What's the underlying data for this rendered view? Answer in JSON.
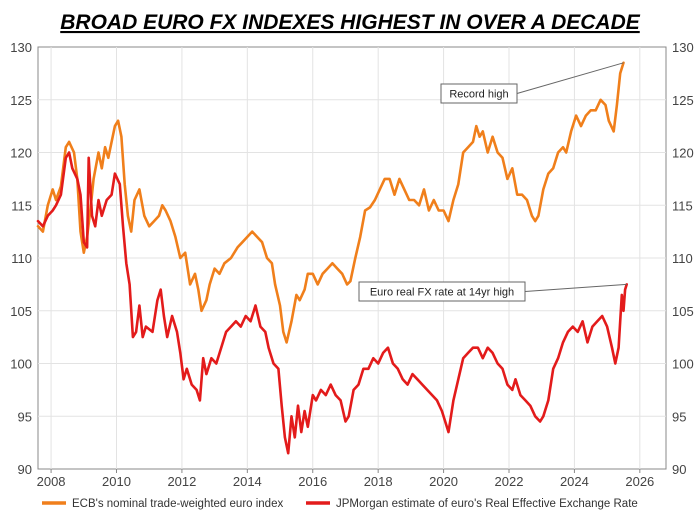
{
  "chart_data": {
    "type": "line",
    "title": "BROAD EURO FX INDEXES HIGHEST IN OVER A DECADE",
    "xlabel": "",
    "ylabel": "",
    "xlim": [
      2007.6,
      2026.8
    ],
    "ylim": [
      90,
      130
    ],
    "x_ticks": [
      2008,
      2010,
      2012,
      2014,
      2016,
      2018,
      2020,
      2022,
      2024,
      2026
    ],
    "y_ticks": [
      90,
      95,
      100,
      105,
      110,
      115,
      120,
      125,
      130
    ],
    "grid": true,
    "series": [
      {
        "name": "ECB's nominal trade-weighted euro index",
        "color": "#F07F1B",
        "points": [
          [
            2007.6,
            113.0
          ],
          [
            2007.75,
            112.5
          ],
          [
            2007.9,
            115.0
          ],
          [
            2008.05,
            116.5
          ],
          [
            2008.15,
            115.5
          ],
          [
            2008.3,
            116.8
          ],
          [
            2008.45,
            120.5
          ],
          [
            2008.55,
            121.0
          ],
          [
            2008.7,
            120.0
          ],
          [
            2008.8,
            117.5
          ],
          [
            2008.9,
            112.5
          ],
          [
            2009.0,
            110.5
          ],
          [
            2009.1,
            112.0
          ],
          [
            2009.2,
            114.5
          ],
          [
            2009.3,
            117.5
          ],
          [
            2009.45,
            120.0
          ],
          [
            2009.55,
            118.5
          ],
          [
            2009.65,
            120.5
          ],
          [
            2009.75,
            119.5
          ],
          [
            2009.85,
            121.0
          ],
          [
            2009.95,
            122.5
          ],
          [
            2010.05,
            123.0
          ],
          [
            2010.15,
            121.5
          ],
          [
            2010.25,
            117.0
          ],
          [
            2010.35,
            114.0
          ],
          [
            2010.45,
            112.5
          ],
          [
            2010.55,
            115.5
          ],
          [
            2010.7,
            116.5
          ],
          [
            2010.85,
            114.0
          ],
          [
            2011.0,
            113.0
          ],
          [
            2011.15,
            113.5
          ],
          [
            2011.3,
            114.0
          ],
          [
            2011.4,
            115.0
          ],
          [
            2011.5,
            114.5
          ],
          [
            2011.65,
            113.5
          ],
          [
            2011.8,
            112.0
          ],
          [
            2011.95,
            110.0
          ],
          [
            2012.1,
            110.5
          ],
          [
            2012.25,
            107.5
          ],
          [
            2012.4,
            108.5
          ],
          [
            2012.5,
            107.0
          ],
          [
            2012.6,
            105.0
          ],
          [
            2012.75,
            106.0
          ],
          [
            2012.85,
            107.5
          ],
          [
            2013.0,
            109.0
          ],
          [
            2013.15,
            108.5
          ],
          [
            2013.3,
            109.5
          ],
          [
            2013.5,
            110.0
          ],
          [
            2013.7,
            111.0
          ],
          [
            2013.85,
            111.5
          ],
          [
            2014.0,
            112.0
          ],
          [
            2014.15,
            112.5
          ],
          [
            2014.3,
            112.0
          ],
          [
            2014.45,
            111.5
          ],
          [
            2014.6,
            110.0
          ],
          [
            2014.75,
            109.5
          ],
          [
            2014.85,
            107.5
          ],
          [
            2015.0,
            105.5
          ],
          [
            2015.1,
            103.0
          ],
          [
            2015.2,
            102.0
          ],
          [
            2015.35,
            104.0
          ],
          [
            2015.5,
            106.5
          ],
          [
            2015.6,
            106.0
          ],
          [
            2015.75,
            107.0
          ],
          [
            2015.85,
            108.5
          ],
          [
            2016.0,
            108.5
          ],
          [
            2016.15,
            107.5
          ],
          [
            2016.3,
            108.5
          ],
          [
            2016.45,
            109.0
          ],
          [
            2016.6,
            109.5
          ],
          [
            2016.75,
            109.0
          ],
          [
            2016.9,
            108.5
          ],
          [
            2017.05,
            107.5
          ],
          [
            2017.15,
            107.8
          ],
          [
            2017.3,
            110.0
          ],
          [
            2017.45,
            112.0
          ],
          [
            2017.6,
            114.5
          ],
          [
            2017.75,
            114.8
          ],
          [
            2017.9,
            115.5
          ],
          [
            2018.05,
            116.5
          ],
          [
            2018.2,
            117.5
          ],
          [
            2018.35,
            117.5
          ],
          [
            2018.5,
            116.0
          ],
          [
            2018.65,
            117.5
          ],
          [
            2018.8,
            116.5
          ],
          [
            2018.95,
            115.5
          ],
          [
            2019.1,
            115.5
          ],
          [
            2019.25,
            115.0
          ],
          [
            2019.4,
            116.5
          ],
          [
            2019.55,
            114.5
          ],
          [
            2019.7,
            115.5
          ],
          [
            2019.85,
            114.5
          ],
          [
            2020.0,
            114.5
          ],
          [
            2020.15,
            113.5
          ],
          [
            2020.3,
            115.5
          ],
          [
            2020.45,
            117.0
          ],
          [
            2020.6,
            120.0
          ],
          [
            2020.75,
            120.5
          ],
          [
            2020.9,
            121.0
          ],
          [
            2021.0,
            122.5
          ],
          [
            2021.1,
            121.5
          ],
          [
            2021.2,
            122.0
          ],
          [
            2021.35,
            120.0
          ],
          [
            2021.5,
            121.5
          ],
          [
            2021.65,
            120.0
          ],
          [
            2021.8,
            119.5
          ],
          [
            2021.95,
            117.5
          ],
          [
            2022.1,
            118.5
          ],
          [
            2022.25,
            116.0
          ],
          [
            2022.4,
            116.0
          ],
          [
            2022.55,
            115.5
          ],
          [
            2022.7,
            114.0
          ],
          [
            2022.8,
            113.5
          ],
          [
            2022.9,
            114.0
          ],
          [
            2023.05,
            116.5
          ],
          [
            2023.2,
            118.0
          ],
          [
            2023.35,
            118.5
          ],
          [
            2023.5,
            120.0
          ],
          [
            2023.65,
            120.5
          ],
          [
            2023.75,
            120.0
          ],
          [
            2023.9,
            122.0
          ],
          [
            2024.05,
            123.5
          ],
          [
            2024.2,
            122.5
          ],
          [
            2024.35,
            123.5
          ],
          [
            2024.5,
            124.0
          ],
          [
            2024.65,
            124.0
          ],
          [
            2024.8,
            125.0
          ],
          [
            2024.95,
            124.5
          ],
          [
            2025.05,
            123.0
          ],
          [
            2025.2,
            122.0
          ],
          [
            2025.3,
            124.5
          ],
          [
            2025.4,
            127.5
          ],
          [
            2025.5,
            128.5
          ]
        ]
      },
      {
        "name": "JPMorgan estimate of euro's Real Effective Exchange Rate",
        "color": "#E31B1B",
        "points": [
          [
            2007.6,
            113.5
          ],
          [
            2007.75,
            113.0
          ],
          [
            2007.9,
            114.0
          ],
          [
            2008.05,
            114.5
          ],
          [
            2008.15,
            115.0
          ],
          [
            2008.3,
            116.0
          ],
          [
            2008.45,
            119.5
          ],
          [
            2008.55,
            120.0
          ],
          [
            2008.65,
            118.5
          ],
          [
            2008.8,
            117.5
          ],
          [
            2008.9,
            116.0
          ],
          [
            2009.0,
            111.5
          ],
          [
            2009.1,
            111.0
          ],
          [
            2009.15,
            119.5
          ],
          [
            2009.25,
            114.0
          ],
          [
            2009.35,
            113.0
          ],
          [
            2009.45,
            115.5
          ],
          [
            2009.55,
            114.0
          ],
          [
            2009.7,
            115.5
          ],
          [
            2009.85,
            116.0
          ],
          [
            2009.95,
            118.0
          ],
          [
            2010.1,
            117.0
          ],
          [
            2010.2,
            113.0
          ],
          [
            2010.3,
            109.5
          ],
          [
            2010.4,
            107.5
          ],
          [
            2010.5,
            102.5
          ],
          [
            2010.6,
            103.0
          ],
          [
            2010.7,
            105.5
          ],
          [
            2010.8,
            102.5
          ],
          [
            2010.9,
            103.5
          ],
          [
            2011.1,
            103.0
          ],
          [
            2011.25,
            106.0
          ],
          [
            2011.35,
            107.0
          ],
          [
            2011.45,
            104.5
          ],
          [
            2011.55,
            102.5
          ],
          [
            2011.7,
            104.5
          ],
          [
            2011.85,
            103.0
          ],
          [
            2011.95,
            101.0
          ],
          [
            2012.05,
            98.5
          ],
          [
            2012.15,
            99.5
          ],
          [
            2012.3,
            98.0
          ],
          [
            2012.45,
            97.5
          ],
          [
            2012.55,
            96.5
          ],
          [
            2012.65,
            100.5
          ],
          [
            2012.75,
            99.0
          ],
          [
            2012.9,
            100.5
          ],
          [
            2013.05,
            100.0
          ],
          [
            2013.2,
            101.5
          ],
          [
            2013.35,
            103.0
          ],
          [
            2013.5,
            103.5
          ],
          [
            2013.65,
            104.0
          ],
          [
            2013.8,
            103.5
          ],
          [
            2013.95,
            104.5
          ],
          [
            2014.1,
            104.0
          ],
          [
            2014.25,
            105.5
          ],
          [
            2014.4,
            103.5
          ],
          [
            2014.55,
            103.0
          ],
          [
            2014.65,
            101.5
          ],
          [
            2014.8,
            100.0
          ],
          [
            2014.95,
            99.5
          ],
          [
            2015.05,
            96.0
          ],
          [
            2015.15,
            93.0
          ],
          [
            2015.25,
            91.5
          ],
          [
            2015.35,
            95.0
          ],
          [
            2015.45,
            93.0
          ],
          [
            2015.55,
            96.0
          ],
          [
            2015.65,
            93.5
          ],
          [
            2015.75,
            95.5
          ],
          [
            2015.85,
            94.0
          ],
          [
            2016.0,
            97.0
          ],
          [
            2016.1,
            96.5
          ],
          [
            2016.25,
            97.5
          ],
          [
            2016.4,
            97.0
          ],
          [
            2016.55,
            98.0
          ],
          [
            2016.7,
            97.0
          ],
          [
            2016.85,
            96.5
          ],
          [
            2017.0,
            94.5
          ],
          [
            2017.1,
            95.0
          ],
          [
            2017.25,
            97.5
          ],
          [
            2017.4,
            98.0
          ],
          [
            2017.55,
            99.5
          ],
          [
            2017.7,
            99.5
          ],
          [
            2017.85,
            100.5
          ],
          [
            2018.0,
            100.0
          ],
          [
            2018.15,
            101.0
          ],
          [
            2018.3,
            101.5
          ],
          [
            2018.45,
            100.0
          ],
          [
            2018.6,
            99.5
          ],
          [
            2018.75,
            98.5
          ],
          [
            2018.9,
            98.0
          ],
          [
            2019.05,
            99.0
          ],
          [
            2019.2,
            98.5
          ],
          [
            2019.35,
            98.0
          ],
          [
            2019.5,
            97.5
          ],
          [
            2019.65,
            97.0
          ],
          [
            2019.8,
            96.5
          ],
          [
            2019.95,
            95.5
          ],
          [
            2020.05,
            94.5
          ],
          [
            2020.15,
            93.5
          ],
          [
            2020.3,
            96.5
          ],
          [
            2020.45,
            98.5
          ],
          [
            2020.6,
            100.5
          ],
          [
            2020.75,
            101.0
          ],
          [
            2020.9,
            101.5
          ],
          [
            2021.05,
            101.5
          ],
          [
            2021.2,
            100.5
          ],
          [
            2021.35,
            101.5
          ],
          [
            2021.5,
            101.0
          ],
          [
            2021.65,
            100.0
          ],
          [
            2021.8,
            99.5
          ],
          [
            2021.95,
            98.0
          ],
          [
            2022.1,
            97.5
          ],
          [
            2022.2,
            98.5
          ],
          [
            2022.35,
            97.0
          ],
          [
            2022.5,
            96.5
          ],
          [
            2022.65,
            96.0
          ],
          [
            2022.8,
            95.0
          ],
          [
            2022.95,
            94.5
          ],
          [
            2023.05,
            95.0
          ],
          [
            2023.2,
            96.5
          ],
          [
            2023.35,
            99.5
          ],
          [
            2023.5,
            100.5
          ],
          [
            2023.65,
            102.0
          ],
          [
            2023.8,
            103.0
          ],
          [
            2023.95,
            103.5
          ],
          [
            2024.1,
            103.0
          ],
          [
            2024.25,
            104.0
          ],
          [
            2024.4,
            102.0
          ],
          [
            2024.55,
            103.5
          ],
          [
            2024.7,
            104.0
          ],
          [
            2024.85,
            104.5
          ],
          [
            2025.0,
            103.5
          ],
          [
            2025.15,
            101.5
          ],
          [
            2025.25,
            100.0
          ],
          [
            2025.35,
            101.5
          ],
          [
            2025.45,
            106.5
          ],
          [
            2025.5,
            105.0
          ],
          [
            2025.55,
            107.0
          ],
          [
            2025.6,
            107.5
          ]
        ]
      }
    ],
    "annotations": [
      {
        "text": "Record high",
        "x": 2025.5,
        "y": 128.5
      },
      {
        "text": "Euro real FX rate at 14yr high",
        "x": 2025.6,
        "y": 107.5
      }
    ],
    "legend": {
      "position": "bottom"
    }
  }
}
